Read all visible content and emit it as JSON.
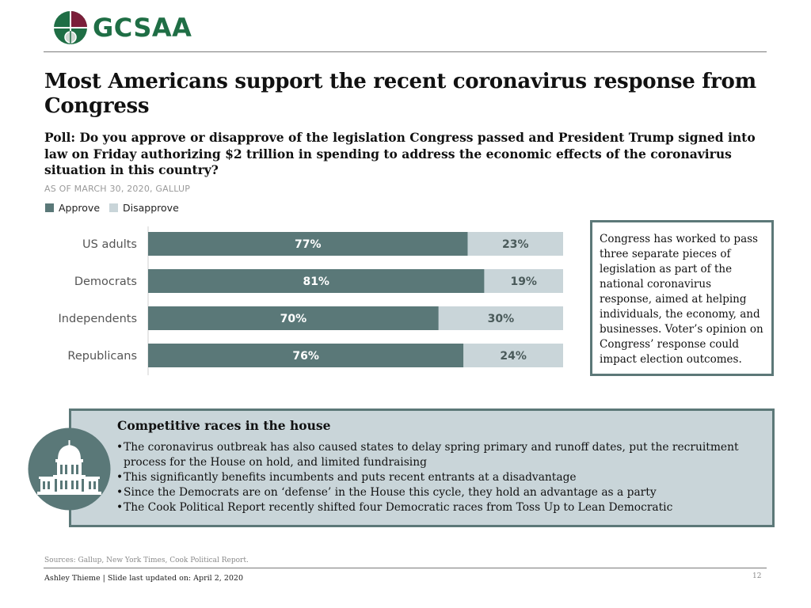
{
  "brand": {
    "name": "GCSAA",
    "colors": {
      "logo_green": "#1f6e45",
      "logo_maroon": "#7b1f3a"
    }
  },
  "title": "Most Americans support the recent coronavirus response from Congress",
  "subtitle": "Poll: Do you approve or disapprove of the legislation Congress passed and President Trump signed into law on Friday authorizing $2 trillion in spending to address the economic effects of the coronavirus situation in this country?",
  "source_line": "AS OF MARCH 30, 2020, GALLUP",
  "colors": {
    "approve": "#5a7878",
    "disapprove": "#c9d5d9",
    "box_border": "#5c7878",
    "box_fill": "#c9d5d9"
  },
  "chart_data": {
    "type": "bar",
    "orientation": "horizontal",
    "stacked": true,
    "categories": [
      "US adults",
      "Democrats",
      "Independents",
      "Republicans"
    ],
    "series": [
      {
        "name": "Approve",
        "values": [
          77,
          81,
          70,
          76
        ]
      },
      {
        "name": "Disapprove",
        "values": [
          23,
          19,
          30,
          24
        ]
      }
    ],
    "data_labels": [
      [
        "77%",
        "81%",
        "70%",
        "76%"
      ],
      [
        "23%",
        "19%",
        "30%",
        "24%"
      ]
    ],
    "xlim": [
      0,
      100
    ],
    "grid": false,
    "legend_position": "top-left"
  },
  "callout_text": "Congress has worked to pass three separate pieces of legislation as part of the national coronavirus response, aimed at helping individuals, the economy, and businesses. Voter’s opinion on Congress’ response could impact election outcomes.",
  "races": {
    "title": "Competitive races in the house",
    "icon": "capitol-building-icon",
    "bullets": [
      "The coronavirus outbreak has also caused states to delay spring primary and runoff dates, put the recruitment process for the House on hold, and limited fundraising",
      "This significantly benefits incumbents and puts recent entrants at a disadvantage",
      "Since the Democrats are on ‘defense’ in the House this cycle, they hold an advantage as a party",
      "The Cook Political Report recently shifted four Democratic races from Toss Up to Lean Democratic"
    ]
  },
  "footer": {
    "sources": "Sources: Gallup, New York Times, Cook Political Report.",
    "author": "Ashley Thieme | Slide last updated on: April 2, 2020",
    "page_number": "12"
  }
}
